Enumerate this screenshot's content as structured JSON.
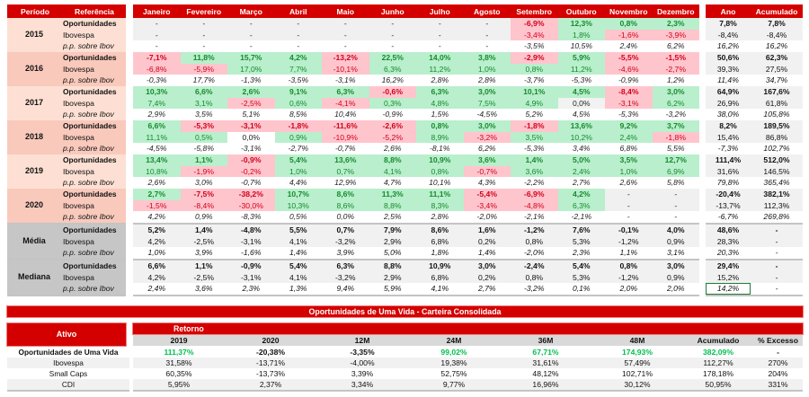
{
  "monthly": {
    "headers": {
      "period": "Período",
      "reference": "Referência",
      "months": [
        "Janeiro",
        "Fevereiro",
        "Março",
        "Abril",
        "Maio",
        "Junho",
        "Julho",
        "Agosto",
        "Setembro",
        "Outubro",
        "Novembro",
        "Dezembro"
      ],
      "year": "Ano",
      "accumulated": "Acumulado"
    },
    "blocks": [
      {
        "period": "2015",
        "kind": "year",
        "rows": [
          {
            "ref": "Oportunidades",
            "values": [
              "-",
              "-",
              "-",
              "-",
              "-",
              "-",
              "-",
              "-",
              "-6,9%",
              "12,3%",
              "0,8%",
              "2,3%"
            ],
            "ano": "7,8%",
            "acumulado": "7,8%"
          },
          {
            "ref": "Ibovespa",
            "values": [
              "-",
              "-",
              "-",
              "-",
              "-",
              "-",
              "-",
              "-",
              "-3,4%",
              "1,8%",
              "-1,6%",
              "-3,9%"
            ],
            "ano": "-8,4%",
            "acumulado": "-8,4%"
          },
          {
            "ref": "p.p. sobre Ibov",
            "values": [
              "-",
              "-",
              "-",
              "-",
              "-",
              "-",
              "-",
              "-",
              "-3,5%",
              "10,5%",
              "2,4%",
              "6,2%"
            ],
            "ano": "16,2%",
            "acumulado": "16,2%"
          }
        ]
      },
      {
        "period": "2016",
        "kind": "year",
        "rows": [
          {
            "ref": "Oportunidades",
            "values": [
              "-7,1%",
              "11,8%",
              "15,7%",
              "4,2%",
              "-13,2%",
              "22,5%",
              "14,0%",
              "3,8%",
              "-2,9%",
              "5,9%",
              "-5,5%",
              "-1,5%"
            ],
            "ano": "50,6%",
            "acumulado": "62,3%"
          },
          {
            "ref": "Ibovespa",
            "values": [
              "-6,8%",
              "-5,9%",
              "17,0%",
              "7,7%",
              "-10,1%",
              "6,3%",
              "11,2%",
              "1,0%",
              "0,8%",
              "11,2%",
              "-4,6%",
              "-2,7%"
            ],
            "ano": "39,3%",
            "acumulado": "27,5%"
          },
          {
            "ref": "p.p. sobre Ibov",
            "values": [
              "-0,3%",
              "17,7%",
              "-1,3%",
              "-3,5%",
              "-3,1%",
              "16,2%",
              "2,8%",
              "2,8%",
              "-3,7%",
              "-5,3%",
              "-0,9%",
              "1,2%"
            ],
            "ano": "11,4%",
            "acumulado": "34,7%"
          }
        ]
      },
      {
        "period": "2017",
        "kind": "year",
        "rows": [
          {
            "ref": "Oportunidades",
            "values": [
              "10,3%",
              "6,6%",
              "2,6%",
              "9,1%",
              "6,3%",
              "-0,6%",
              "6,3%",
              "3,0%",
              "10,1%",
              "4,5%",
              "-8,4%",
              "3,0%"
            ],
            "ano": "64,9%",
            "acumulado": "167,6%"
          },
          {
            "ref": "Ibovespa",
            "values": [
              "7,4%",
              "3,1%",
              "-2,5%",
              "0,6%",
              "-4,1%",
              "0,3%",
              "4,8%",
              "7,5%",
              "4,9%",
              "0,0%",
              "-3,1%",
              "6,2%"
            ],
            "ano": "26,9%",
            "acumulado": "61,8%"
          },
          {
            "ref": "p.p. sobre Ibov",
            "values": [
              "2,9%",
              "3,5%",
              "5,1%",
              "8,5%",
              "10,4%",
              "-0,9%",
              "1,5%",
              "-4,5%",
              "5,2%",
              "4,5%",
              "-5,3%",
              "-3,2%"
            ],
            "ano": "38,0%",
            "acumulado": "105,8%"
          }
        ]
      },
      {
        "period": "2018",
        "kind": "year",
        "rows": [
          {
            "ref": "Oportunidades",
            "values": [
              "6,6%",
              "-5,3%",
              "-3,1%",
              "-1,8%",
              "-11,6%",
              "-2,6%",
              "0,8%",
              "3,0%",
              "-1,8%",
              "13,6%",
              "9,2%",
              "3,7%"
            ],
            "ano": "8,2%",
            "acumulado": "189,5%"
          },
          {
            "ref": "Ibovespa",
            "values": [
              "11,1%",
              "0,5%",
              "0,0%",
              "0,9%",
              "-10,9%",
              "-5,2%",
              "8,9%",
              "-3,2%",
              "3,5%",
              "10,2%",
              "2,4%",
              "-1,8%"
            ],
            "ano": "15,4%",
            "acumulado": "86,8%"
          },
          {
            "ref": "p.p. sobre Ibov",
            "values": [
              "-4,5%",
              "-5,8%",
              "-3,1%",
              "-2,7%",
              "-0,7%",
              "2,6%",
              "-8,1%",
              "6,2%",
              "-5,3%",
              "3,4%",
              "6,8%",
              "5,5%"
            ],
            "ano": "-7,3%",
            "acumulado": "102,7%"
          }
        ]
      },
      {
        "period": "2019",
        "kind": "year",
        "rows": [
          {
            "ref": "Oportunidades",
            "values": [
              "13,4%",
              "1,1%",
              "-0,9%",
              "5,4%",
              "13,6%",
              "8,8%",
              "10,9%",
              "3,6%",
              "1,4%",
              "5,0%",
              "3,5%",
              "12,7%"
            ],
            "ano": "111,4%",
            "acumulado": "512,0%"
          },
          {
            "ref": "Ibovespa",
            "values": [
              "10,8%",
              "-1,9%",
              "-0,2%",
              "1,0%",
              "0,7%",
              "4,1%",
              "0,8%",
              "-0,7%",
              "3,6%",
              "2,4%",
              "1,0%",
              "6,9%"
            ],
            "ano": "31,6%",
            "acumulado": "146,5%"
          },
          {
            "ref": "p.p. sobre Ibov",
            "values": [
              "2,6%",
              "3,0%",
              "-0,7%",
              "4,4%",
              "12,9%",
              "4,7%",
              "10,1%",
              "4,3%",
              "-2,2%",
              "2,7%",
              "2,6%",
              "5,8%"
            ],
            "ano": "79,8%",
            "acumulado": "365,4%"
          }
        ]
      },
      {
        "period": "2020",
        "kind": "year",
        "rows": [
          {
            "ref": "Oportunidades",
            "values": [
              "2,7%",
              "-7,5%",
              "-38,2%",
              "10,7%",
              "8,6%",
              "11,3%",
              "11,1%",
              "-5,4%",
              "-6,9%",
              "4,2%",
              "-",
              "-"
            ],
            "ano": "-20,4%",
            "acumulado": "382,1%"
          },
          {
            "ref": "Ibovespa",
            "values": [
              "-1,5%",
              "-8,4%",
              "-30,0%",
              "10,3%",
              "8,6%",
              "8,8%",
              "8,3%",
              "-3,4%",
              "-4,8%",
              "6,3%",
              "-",
              "-"
            ],
            "ano": "-13,7%",
            "acumulado": "112,3%"
          },
          {
            "ref": "p.p. sobre Ibov",
            "values": [
              "4,2%",
              "0,9%",
              "-8,3%",
              "0,5%",
              "0,0%",
              "2,5%",
              "2,8%",
              "-2,0%",
              "-2,1%",
              "-2,1%",
              "-",
              "-"
            ],
            "ano": "-6,7%",
            "acumulado": "269,8%"
          }
        ]
      },
      {
        "period": "Média",
        "kind": "stat",
        "rows": [
          {
            "ref": "Oportunidades",
            "values": [
              "5,2%",
              "1,4%",
              "-4,8%",
              "5,5%",
              "0,7%",
              "7,9%",
              "8,6%",
              "1,6%",
              "-1,2%",
              "7,6%",
              "-0,1%",
              "4,0%"
            ],
            "ano": "48,6%",
            "acumulado": "-"
          },
          {
            "ref": "Ibovespa",
            "values": [
              "4,2%",
              "-2,5%",
              "-3,1%",
              "4,1%",
              "-3,2%",
              "2,9%",
              "6,8%",
              "0,2%",
              "0,8%",
              "5,3%",
              "-1,2%",
              "0,9%"
            ],
            "ano": "28,3%",
            "acumulado": "-"
          },
          {
            "ref": "p.p. sobre Ibov",
            "values": [
              "1,0%",
              "3,9%",
              "-1,6%",
              "1,4%",
              "3,9%",
              "5,0%",
              "1,8%",
              "1,4%",
              "-2,0%",
              "2,3%",
              "1,1%",
              "3,1%"
            ],
            "ano": "20,3%",
            "acumulado": "-"
          }
        ]
      },
      {
        "period": "Mediana",
        "kind": "stat",
        "rows": [
          {
            "ref": "Oportunidades",
            "values": [
              "6,6%",
              "1,1%",
              "-0,9%",
              "5,4%",
              "6,3%",
              "8,8%",
              "10,9%",
              "3,0%",
              "-2,4%",
              "5,4%",
              "0,8%",
              "3,0%"
            ],
            "ano": "29,4%",
            "acumulado": "-"
          },
          {
            "ref": "Ibovespa",
            "values": [
              "4,2%",
              "-2,5%",
              "-3,1%",
              "4,1%",
              "-3,2%",
              "2,9%",
              "6,8%",
              "0,2%",
              "0,8%",
              "5,3%",
              "-1,2%",
              "0,9%"
            ],
            "ano": "15,2%",
            "acumulado": "-"
          },
          {
            "ref": "p.p. sobre Ibov",
            "values": [
              "2,4%",
              "3,6%",
              "2,3%",
              "1,3%",
              "9,4%",
              "5,9%",
              "4,1%",
              "2,7%",
              "-3,2%",
              "0,1%",
              "2,0%",
              "2,0%"
            ],
            "ano": "14,2%",
            "acumulado": "-"
          }
        ]
      }
    ],
    "selected_cell": "Mediana p.p. sobre Ibov Ano"
  },
  "summary": {
    "title": "Oportunidades de Uma Vida - Carteira Consolidada",
    "asset_header": "Ativo",
    "return_header": "Retorno",
    "columns": [
      "2019",
      "2020",
      "12M",
      "24M",
      "36M",
      "48M",
      "Acumulado",
      "% Excesso"
    ],
    "rows": [
      {
        "asset": "Oportunidades de Uma Vida",
        "values": [
          "111,37%",
          "-20,38%",
          "-3,35%",
          "99,02%",
          "67,71%",
          "174,93%",
          "382,09%",
          "-"
        ]
      },
      {
        "asset": "Ibovespa",
        "values": [
          "31,58%",
          "-13,71%",
          "-4,00%",
          "19,38%",
          "31,61%",
          "57,49%",
          "112,27%",
          "270%"
        ]
      },
      {
        "asset": "Small Caps",
        "values": [
          "60,35%",
          "-13,73%",
          "3,39%",
          "52,75%",
          "48,12%",
          "102,71%",
          "178,18%",
          "204%"
        ]
      },
      {
        "asset": "CDI",
        "values": [
          "5,95%",
          "2,37%",
          "3,34%",
          "9,77%",
          "16,96%",
          "30,12%",
          "50,95%",
          "331%"
        ]
      }
    ]
  },
  "colors": {
    "brand_red": "#d40000",
    "positive_bg": "#b9efcd",
    "negative_bg": "#ffc5cd",
    "positive_text": "#178a2c",
    "negative_text": "#d0001a",
    "highlight_green": "#00c050"
  }
}
